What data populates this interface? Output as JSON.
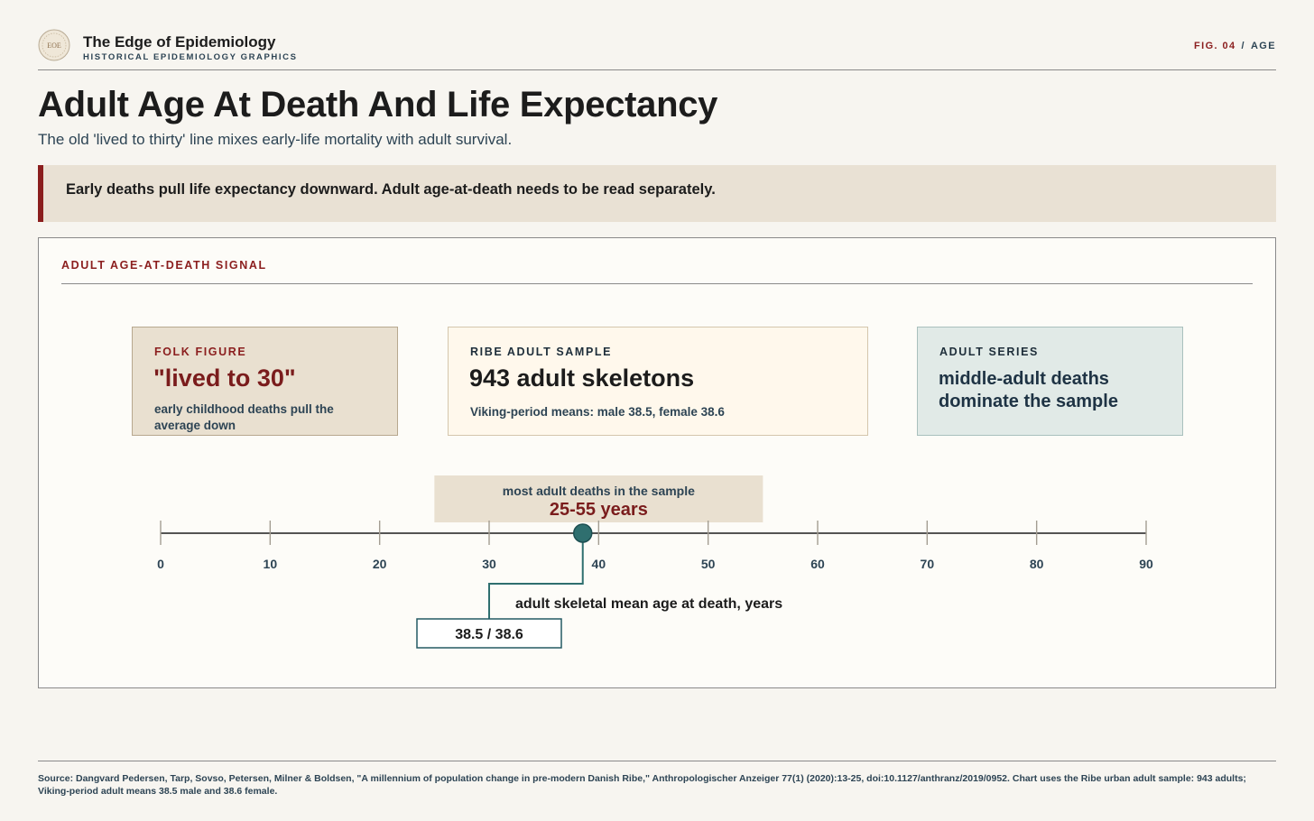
{
  "header": {
    "brand_title": "The Edge of Epidemiology",
    "brand_subtitle": "HISTORICAL EPIDEMIOLOGY GRAPHICS",
    "logo_text": "EOE",
    "fig_number": "FIG. 04",
    "fig_separator": "/",
    "fig_topic": "AGE"
  },
  "title": "Adult Age At Death And Life Expectancy",
  "subtitle": "The old 'lived to thirty' line mixes early-life mortality with adult survival.",
  "callout": "Early deaths pull life expectancy downward. Adult age-at-death needs to be read separately.",
  "panel": {
    "label": "ADULT AGE-AT-DEATH SIGNAL",
    "cards": {
      "folk": {
        "eyebrow": "FOLK FIGURE",
        "headline": "\"lived to 30\"",
        "note": "early childhood deaths pull the average down"
      },
      "ribe": {
        "eyebrow": "RIBE ADULT SAMPLE",
        "headline": "943 adult skeletons",
        "note": "Viking-period means: male 38.5, female 38.6"
      },
      "adult": {
        "eyebrow": "ADULT SERIES",
        "headline": "middle-adult deaths dominate the sample"
      }
    }
  },
  "chart_data": {
    "type": "scatter",
    "x_axis": {
      "min": 0,
      "max": 90,
      "ticks": [
        0,
        10,
        20,
        30,
        40,
        50,
        60,
        70,
        80,
        90
      ],
      "tick_labels": [
        "0",
        "10",
        "20",
        "30",
        "40",
        "50",
        "60",
        "70",
        "80",
        "90"
      ]
    },
    "range": {
      "start": 25,
      "end": 55,
      "caption": "most adult deaths in the sample",
      "label": "25-55 years"
    },
    "point": {
      "x": 38.55,
      "label": "adult skeletal mean age at death, years",
      "value_label": "38.5 / 38.6",
      "values": {
        "male": 38.5,
        "female": 38.6
      }
    },
    "colors": {
      "axis": "#1c1c1c",
      "tick": "#a39d92",
      "point": "#2f6f6f",
      "range_fill": "#e9e0d0",
      "accent": "#7a1c1c"
    }
  },
  "footer": {
    "source": "Source: Dangvard Pedersen, Tarp, Sovso, Petersen, Milner & Boldsen, \"A millennium of population change in pre-modern Danish Ribe,\" Anthropologischer Anzeiger 77(1) (2020):13-25, doi:10.1127/anthranz/2019/0952. Chart uses the Ribe urban adult sample: 943 adults; Viking-period adult means 38.5 male and 38.6 female."
  }
}
